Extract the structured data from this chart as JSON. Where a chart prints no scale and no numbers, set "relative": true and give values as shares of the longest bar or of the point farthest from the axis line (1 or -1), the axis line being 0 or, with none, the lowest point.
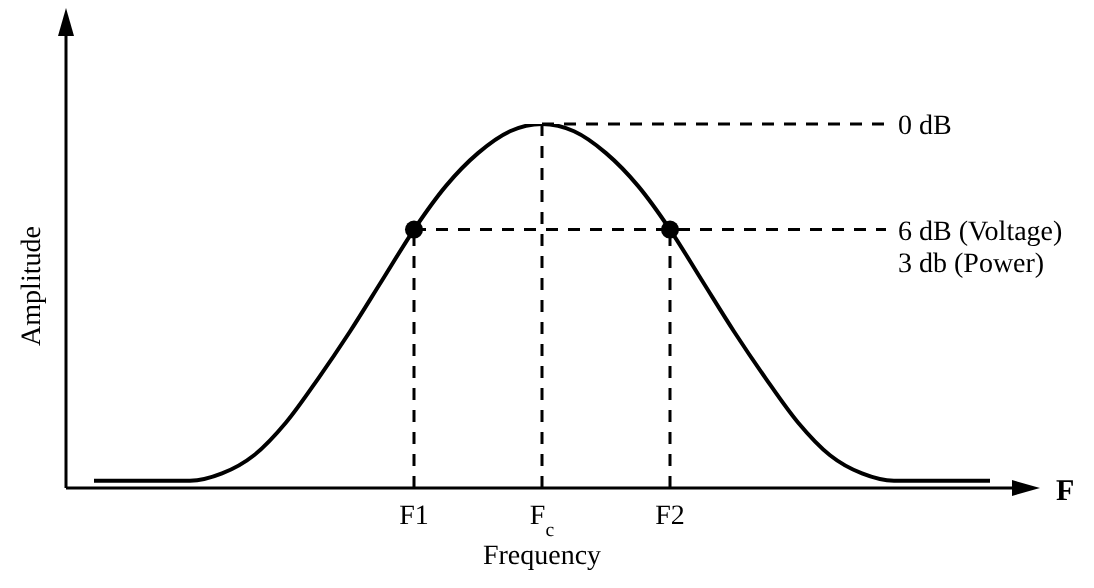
{
  "chart_data": {
    "type": "line",
    "relative": true,
    "xlabel": "Frequency",
    "ylabel": "Amplitude",
    "annotations": [
      "F"
    ],
    "categories": [
      null,
      null,
      null,
      null,
      null,
      null,
      null,
      null,
      null,
      null,
      "F1",
      null,
      null,
      null,
      "F$_{c}$",
      null,
      null,
      null,
      "F2",
      null,
      null,
      null,
      null,
      null,
      null,
      null,
      null,
      null,
      null
    ],
    "series": [
      {
        "color": "#000000",
        "values": [
          0.02,
          0.02,
          0.02,
          0.02,
          0.04,
          0.09,
          0.18,
          0.3,
          0.43,
          0.57,
          0.71,
          0.83,
          0.92,
          0.98,
          1,
          0.98,
          0.92,
          0.83,
          0.71,
          0.57,
          0.43,
          0.3,
          0.18,
          0.09,
          0.04,
          0.02,
          0.02,
          0.02,
          0.02
        ]
      },
      {
        "type": "scatter",
        "color": "#000000",
        "marker": "circle",
        "x": [
          "F1",
          "F2"
        ],
        "values": [
          0.71,
          0.71
        ]
      }
    ],
    "ref_lines": [
      {
        "axis": "y",
        "value": 1,
        "label": "0 dB",
        "line_style": "dashed"
      },
      {
        "axis": "y",
        "value": 0.71,
        "label": "6 dB (Voltage)\n3 db (Power)",
        "line_style": "dashed"
      },
      {
        "axis": "x",
        "value": "F1",
        "line_style": "dashed"
      },
      {
        "axis": "x",
        "value": "F$_{c}$",
        "line_style": "dashed"
      },
      {
        "axis": "x",
        "value": "F2",
        "line_style": "dashed"
      }
    ],
    "grid": false,
    "legend": false
  }
}
